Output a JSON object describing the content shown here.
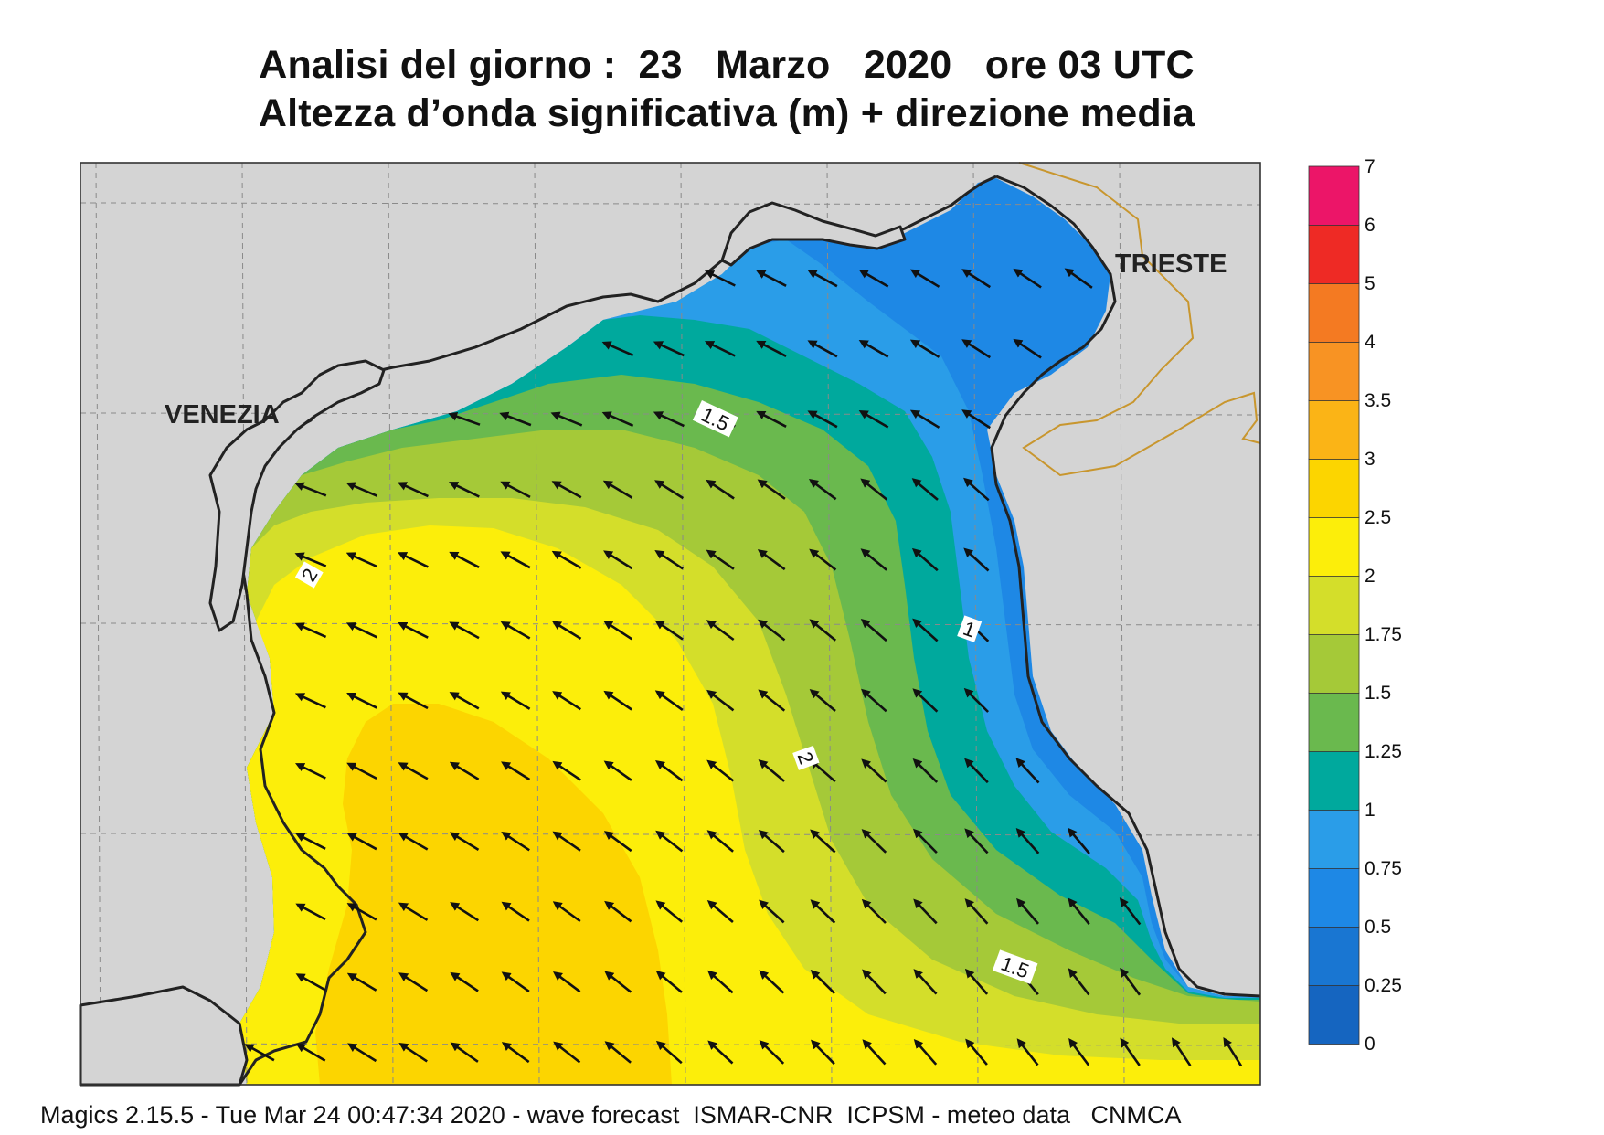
{
  "title": {
    "line1": "Analisi del giorno :  23   Marzo   2020   ore 03 UTC",
    "line2": "Altezza d’onda significativa (m) + direzione media"
  },
  "footer": "Magics 2.15.5 - Tue Mar 24 00:47:34 2020 - wave forecast  ISMAR-CNR  ICPSM - meteo data   CNMCA",
  "places": [
    {
      "name": "VENEZIA"
    },
    {
      "name": "TRIESTE"
    }
  ],
  "contour_labels": [
    "1.5",
    "2",
    "1",
    "2",
    "1.5"
  ],
  "colors": {
    "land": "#d4d4d4",
    "coastline": "#222222",
    "border": "#c8962e",
    "grid": "#8a8a8a",
    "arrow": "#111111"
  },
  "legend": {
    "title": "",
    "ticks": [
      "0",
      "0.25",
      "0.5",
      "0.75",
      "1",
      "1.25",
      "1.5",
      "1.75",
      "2",
      "2.5",
      "3",
      "3.5",
      "4",
      "5",
      "6",
      "7"
    ],
    "bins": [
      {
        "from": "0",
        "to": "0.25",
        "color": "#1565c0"
      },
      {
        "from": "0.25",
        "to": "0.5",
        "color": "#1976d2"
      },
      {
        "from": "0.5",
        "to": "0.75",
        "color": "#1e88e5"
      },
      {
        "from": "0.75",
        "to": "1",
        "color": "#2a9de8"
      },
      {
        "from": "1",
        "to": "1.25",
        "color": "#00a99d"
      },
      {
        "from": "1.25",
        "to": "1.5",
        "color": "#6ab94e"
      },
      {
        "from": "1.5",
        "to": "1.75",
        "color": "#a5c938"
      },
      {
        "from": "1.75",
        "to": "2",
        "color": "#d4de2a"
      },
      {
        "from": "2",
        "to": "2.5",
        "color": "#fcee0a"
      },
      {
        "from": "2.5",
        "to": "3",
        "color": "#fcd500"
      },
      {
        "from": "3",
        "to": "3.5",
        "color": "#fbb416"
      },
      {
        "from": "3.5",
        "to": "4",
        "color": "#f89323"
      },
      {
        "from": "4",
        "to": "5",
        "color": "#f47a22"
      },
      {
        "from": "5",
        "to": "6",
        "color": "#ee2a25"
      },
      {
        "from": "6",
        "to": "7",
        "color": "#ec1568"
      }
    ]
  },
  "wave_direction": {
    "description_value": "mean direction toward southwest/west",
    "arrow_icon": "direction-arrow-icon"
  }
}
